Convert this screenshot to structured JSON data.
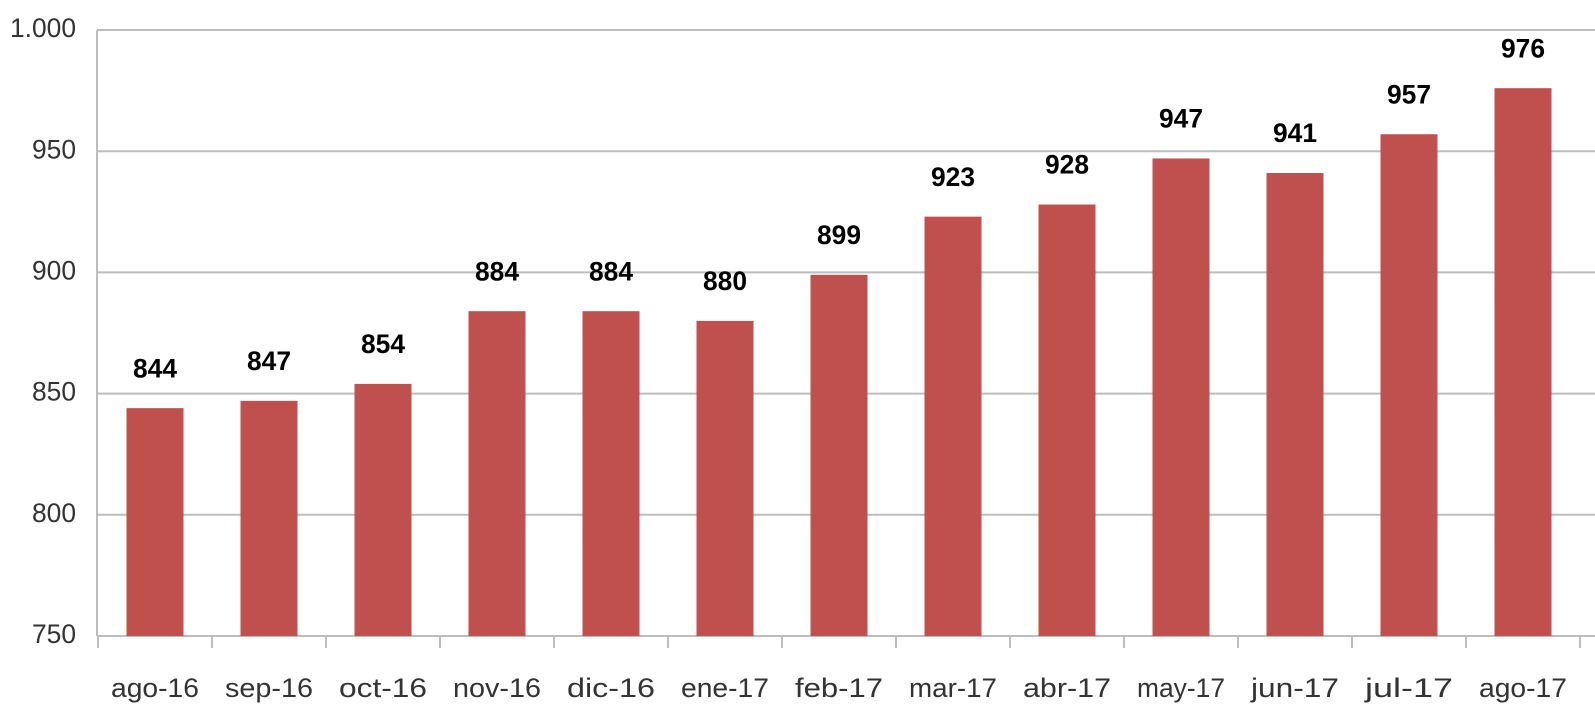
{
  "chart_data": {
    "type": "bar",
    "categories": [
      "ago-16",
      "sep-16",
      "oct-16",
      "nov-16",
      "dic-16",
      "ene-17",
      "feb-17",
      "mar-17",
      "abr-17",
      "may-17",
      "jun-17",
      "jul-17",
      "ago-17"
    ],
    "values": [
      844,
      847,
      854,
      884,
      884,
      880,
      899,
      923,
      928,
      947,
      941,
      957,
      976
    ],
    "color": "#c0504d",
    "ylim": [
      750,
      1000
    ],
    "yticks": [
      750,
      800,
      850,
      900,
      950,
      {
        "value": 1000,
        "label": "1.000"
      }
    ],
    "grid": true
  }
}
